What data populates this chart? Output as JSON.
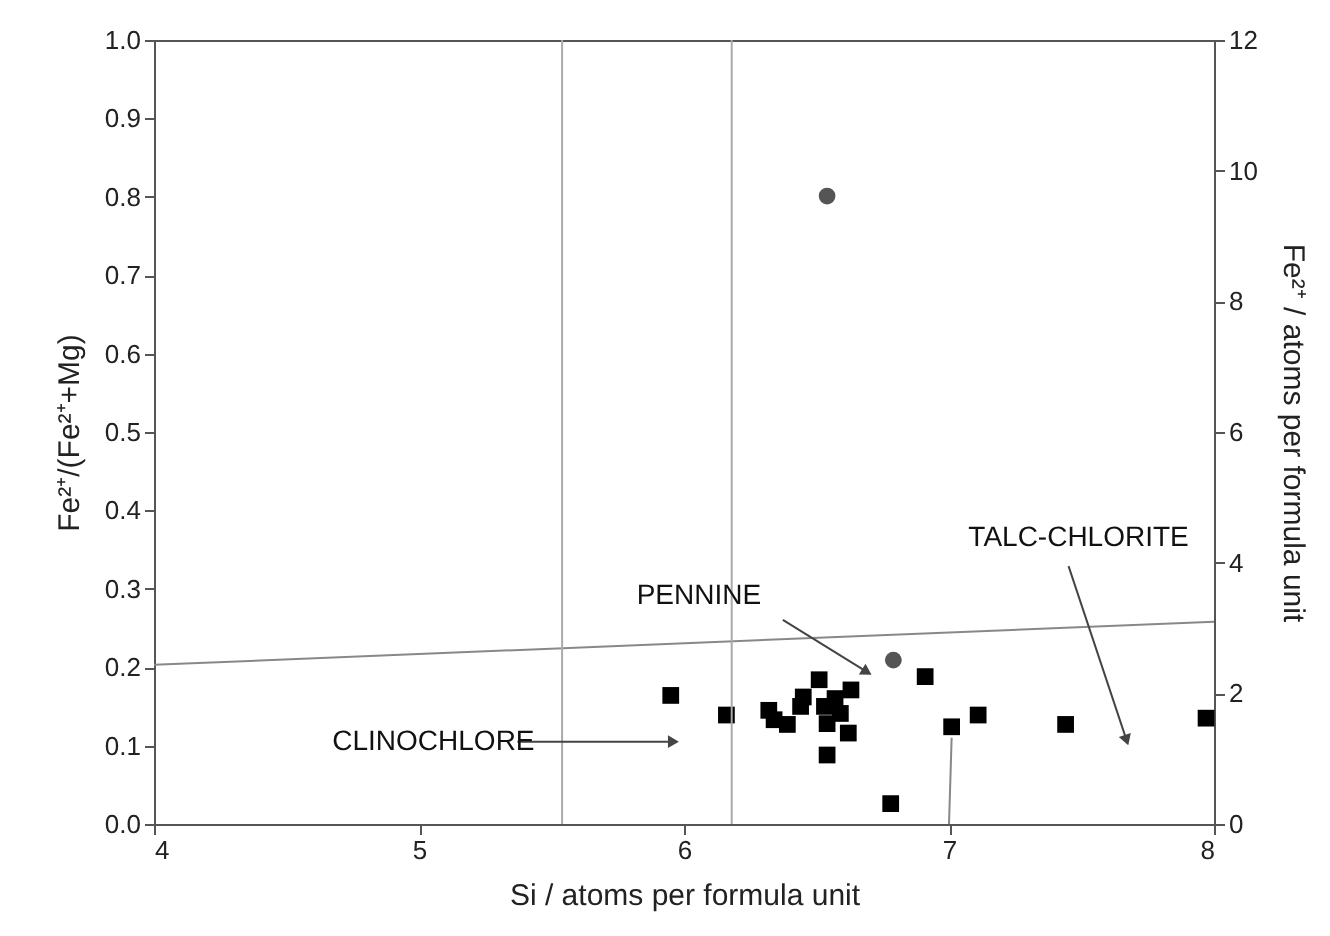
{
  "chart_data": {
    "type": "scatter",
    "xlabel": "Si / atoms per formula unit",
    "ylabel": "Fe²⁺/(Fe²⁺+Mg)",
    "y2label": "Fe²⁺ / atoms per formula unit",
    "xlim": [
      4,
      8
    ],
    "xticks": [
      4,
      5,
      6,
      7,
      8
    ],
    "ylim": [
      0,
      1
    ],
    "yticks": [
      {
        "value": 0,
        "label": "0.0"
      },
      0.1,
      0.2,
      0.3,
      0.4,
      0.5,
      0.6,
      0.7,
      0.8,
      0.9,
      {
        "value": 1,
        "label": "1.0"
      }
    ],
    "y2lim": [
      0,
      12
    ],
    "y2ticks": [
      0,
      2,
      4,
      6,
      8,
      10,
      12
    ],
    "grid": false,
    "series": [
      {
        "type": "line",
        "color": "#888888",
        "line_style": "solid",
        "x": [
          4,
          8
        ],
        "values": [
          0.203,
          0.258
        ]
      },
      {
        "type": "line",
        "color": "#888888",
        "line_style": "solid",
        "x": [
          7.01,
          7.0
        ],
        "values": [
          0.11,
          0
        ]
      },
      {
        "type": "scatter",
        "marker": "square",
        "color": "#000000",
        "x": [
          5.95,
          6.16,
          6.32,
          6.34,
          6.39,
          6.45,
          6.51,
          6.44,
          6.53,
          6.54,
          6.57,
          6.63,
          6.59,
          6.62,
          6.54,
          6.78,
          6.91,
          7.01,
          7.11,
          7.44,
          7.97
        ],
        "values": [
          0.164,
          0.139,
          0.145,
          0.133,
          0.127,
          0.162,
          0.184,
          0.15,
          0.15,
          0.128,
          0.16,
          0.171,
          0.141,
          0.116,
          0.088,
          0.026,
          0.188,
          0.124,
          0.139,
          0.127,
          0.135
        ]
      },
      {
        "type": "scatter",
        "marker": "circle",
        "color": "#555555",
        "x": [
          6.79,
          6.54
        ],
        "values": [
          0.209,
          0.801
        ]
      }
    ],
    "ref_lines": [
      {
        "axis": "x",
        "value": 5.54,
        "color": "#aaaaaa"
      },
      {
        "axis": "x",
        "value": 6.18,
        "color": "#aaaaaa"
      }
    ],
    "annotations": [
      {
        "text": "CLINOCHLORE",
        "x": 5.96,
        "y": 0.105
      },
      {
        "text": "PENNINE",
        "x": 6.69,
        "y": 0.194
      },
      {
        "text": "TALC-CHLORITE",
        "x": 7.67,
        "y": 0.107
      }
    ]
  }
}
